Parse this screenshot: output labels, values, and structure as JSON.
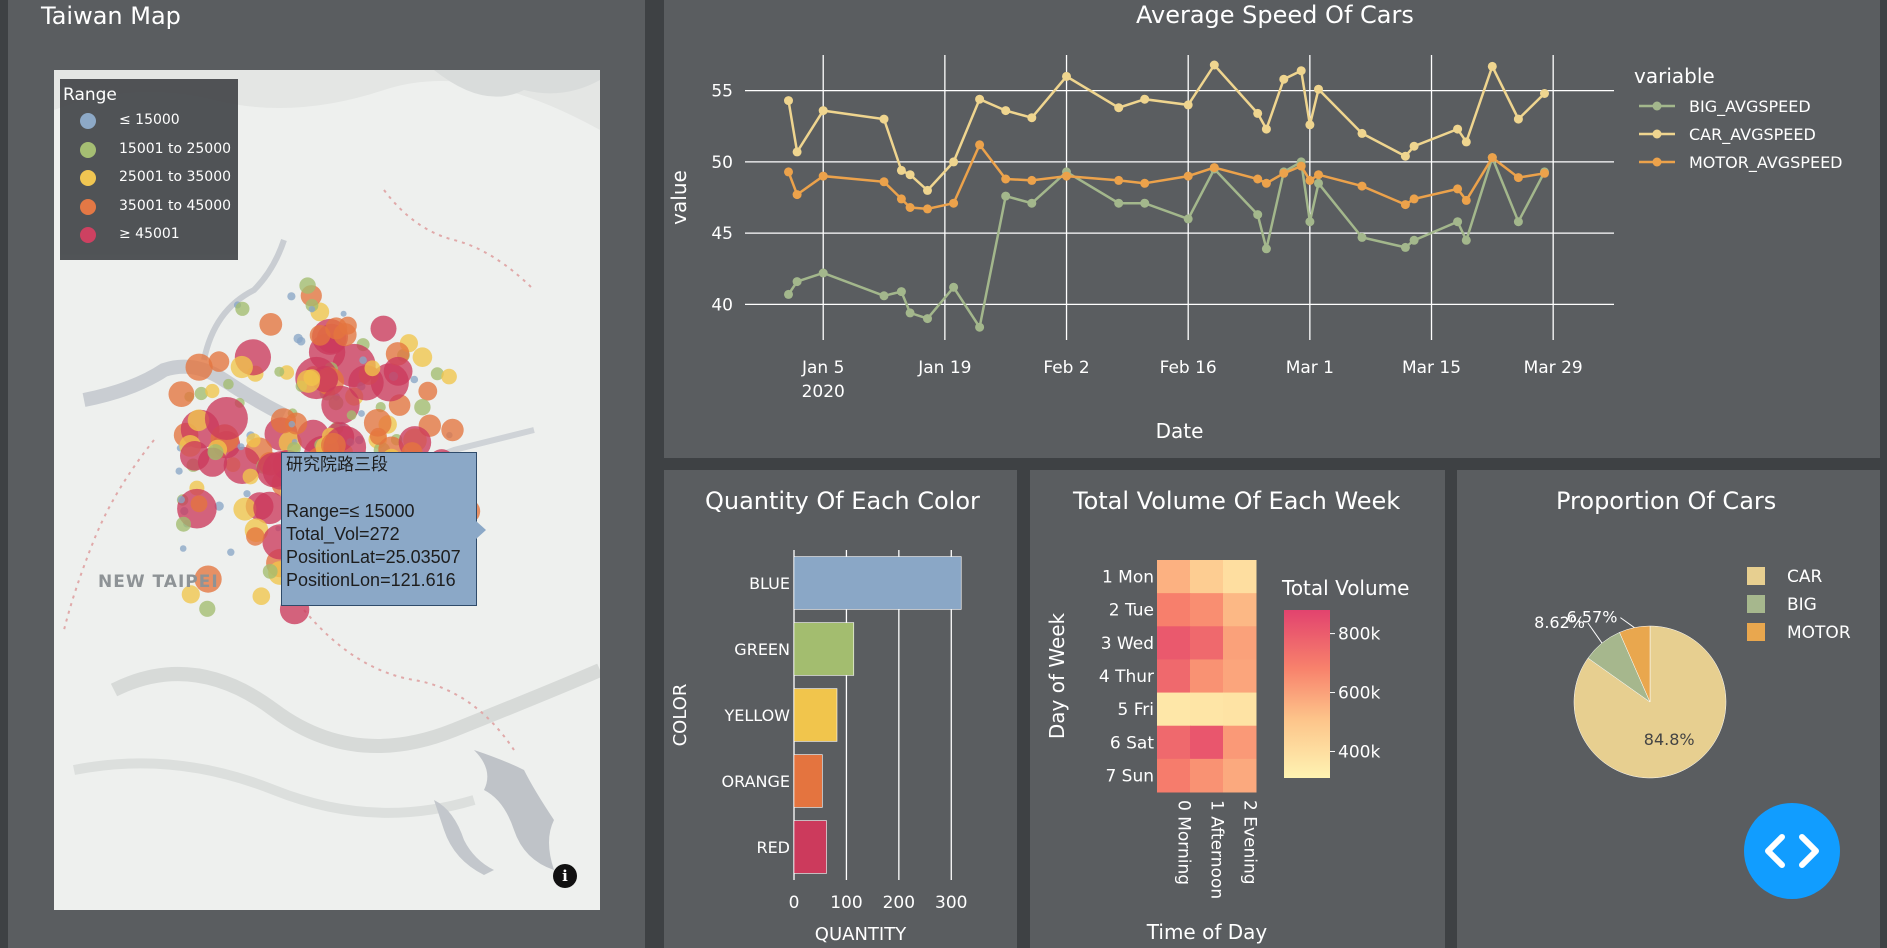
{
  "map_panel": {
    "title": "Taiwan Map",
    "legend_title": "Range",
    "legend_items": [
      {
        "label": "≤ 15000",
        "color": "#8aa7c6"
      },
      {
        "label": "15001 to 25000",
        "color": "#a3bd6f"
      },
      {
        "label": "25001 to 35000",
        "color": "#f1c54c"
      },
      {
        "label": "35001 to 45000",
        "color": "#e4743f"
      },
      {
        "label": "≥ 45001",
        "color": "#cc3a5c"
      }
    ],
    "city_label": "NEW TAIPEI",
    "info_icon": "info-icon",
    "tooltip": {
      "title": "研究院路三段",
      "range": "Range=≤ 15000",
      "total_vol": "Total_Vol=272",
      "lat": "PositionLat=25.03507",
      "lon": "PositionLon=121.616"
    }
  },
  "speed_chart": {
    "title": "Average Speed Of Cars",
    "chart_data": {
      "type": "line",
      "title": "Average Speed Of Cars",
      "xlabel": "Date",
      "ylabel": "value",
      "ylim": [
        37.5,
        57.5
      ],
      "yticks": [
        40,
        45,
        50,
        55
      ],
      "xticks": [
        {
          "value": "2020-01-05",
          "label": "Jan 5",
          "sublabel": "2020"
        },
        {
          "value": "2020-01-19",
          "label": "Jan 19"
        },
        {
          "value": "2020-02-02",
          "label": "Feb 2"
        },
        {
          "value": "2020-02-16",
          "label": "Feb 16"
        },
        {
          "value": "2020-03-01",
          "label": "Mar 1"
        },
        {
          "value": "2020-03-15",
          "label": "Mar 15"
        },
        {
          "value": "2020-03-29",
          "label": "Mar 29"
        }
      ],
      "xlim": [
        "2019-12-27",
        "2020-04-05"
      ],
      "legend_title": "variable",
      "legend_position": "right",
      "x": [
        "2020-01-01",
        "2020-01-02",
        "2020-01-05",
        "2020-01-12",
        "2020-01-14",
        "2020-01-15",
        "2020-01-17",
        "2020-01-20",
        "2020-01-23",
        "2020-01-26",
        "2020-01-29",
        "2020-02-02",
        "2020-02-08",
        "2020-02-11",
        "2020-02-16",
        "2020-02-19",
        "2020-02-24",
        "2020-02-25",
        "2020-02-27",
        "2020-02-29",
        "2020-03-01",
        "2020-03-02",
        "2020-03-07",
        "2020-03-12",
        "2020-03-13",
        "2020-03-18",
        "2020-03-19",
        "2020-03-22",
        "2020-03-25",
        "2020-03-28"
      ],
      "series": [
        {
          "name": "BIG_AVGSPEED",
          "color": "#a3b78c",
          "values": [
            40.7,
            41.6,
            42.2,
            40.6,
            40.9,
            39.4,
            39.0,
            41.2,
            38.4,
            47.6,
            47.1,
            49.3,
            47.1,
            47.1,
            46.0,
            49.5,
            46.3,
            43.9,
            49.3,
            50.0,
            45.8,
            48.5,
            44.7,
            44.0,
            44.5,
            45.8,
            44.5,
            50.3,
            45.8,
            49.3
          ]
        },
        {
          "name": "CAR_AVGSPEED",
          "color": "#efd58f",
          "values": [
            54.3,
            50.7,
            53.6,
            53.0,
            49.4,
            49.1,
            48.0,
            50.0,
            54.4,
            53.6,
            53.1,
            56.0,
            53.8,
            54.4,
            54.0,
            56.8,
            53.4,
            52.3,
            55.8,
            56.4,
            52.6,
            55.1,
            52.0,
            50.4,
            51.1,
            52.3,
            51.4,
            56.7,
            53.0,
            54.8
          ]
        },
        {
          "name": "MOTOR_AVGSPEED",
          "color": "#eca24b",
          "values": [
            49.3,
            47.7,
            49.0,
            48.6,
            47.4,
            46.8,
            46.7,
            47.1,
            51.2,
            48.8,
            48.7,
            49.0,
            48.7,
            48.5,
            49.0,
            49.6,
            48.8,
            48.5,
            49.2,
            49.7,
            48.7,
            49.1,
            48.3,
            47.0,
            47.4,
            48.1,
            47.3,
            50.3,
            48.9,
            49.2
          ]
        }
      ]
    }
  },
  "color_chart": {
    "title": "Quantity Of Each Color",
    "chart_data": {
      "type": "bar",
      "orientation": "horizontal",
      "title": "Quantity Of Each Color",
      "xlabel": "QUANTITY",
      "ylabel": "COLOR",
      "xlim": [
        0,
        330
      ],
      "xticks": [
        0,
        100,
        200,
        300
      ],
      "categories": [
        "BLUE",
        "GREEN",
        "YELLOW",
        "ORANGE",
        "RED"
      ],
      "values": [
        319,
        114,
        82,
        54,
        62
      ],
      "colors": [
        "#8aa7c6",
        "#a3bd6f",
        "#f1c54c",
        "#e4743f",
        "#cc3a5c"
      ]
    }
  },
  "volume_chart": {
    "title": "Total Volume Of Each Week",
    "chart_data": {
      "type": "heatmap",
      "title": "Total Volume Of Each Week",
      "xlabel": "Time of Day",
      "ylabel": "Day of Week",
      "x": [
        "0 Morning",
        "1 Afternoon",
        "2 Evening"
      ],
      "y": [
        "1 Mon",
        "2 Tue",
        "3 Wed",
        "4 Thur",
        "5 Fri",
        "6 Sat",
        "7 Sun"
      ],
      "z": [
        [
          560000,
          470000,
          400000
        ],
        [
          690000,
          650000,
          540000
        ],
        [
          810000,
          760000,
          600000
        ],
        [
          760000,
          640000,
          590000
        ],
        [
          360000,
          370000,
          380000
        ],
        [
          760000,
          820000,
          620000
        ],
        [
          700000,
          640000,
          580000
        ]
      ],
      "colorbar_title": "Total Volume",
      "colorbar_ticks": [
        {
          "value": 400000,
          "label": "400k"
        },
        {
          "value": 600000,
          "label": "600k"
        },
        {
          "value": 800000,
          "label": "800k"
        }
      ],
      "zmin": 310000,
      "zmax": 880000
    }
  },
  "proportion_chart": {
    "title": "Proportion Of Cars",
    "chart_data": {
      "type": "pie",
      "title": "Proportion Of Cars",
      "labels": [
        "CAR",
        "BIG",
        "MOTOR"
      ],
      "values": [
        84.8,
        8.62,
        6.57
      ],
      "value_labels": [
        "84.8%",
        "8.62%",
        "6.57%"
      ],
      "colors": [
        "#e7cf90",
        "#a6b78d",
        "#e9a74e"
      ],
      "legend_position": "right"
    }
  },
  "fab": {
    "icon": "code-icon"
  }
}
